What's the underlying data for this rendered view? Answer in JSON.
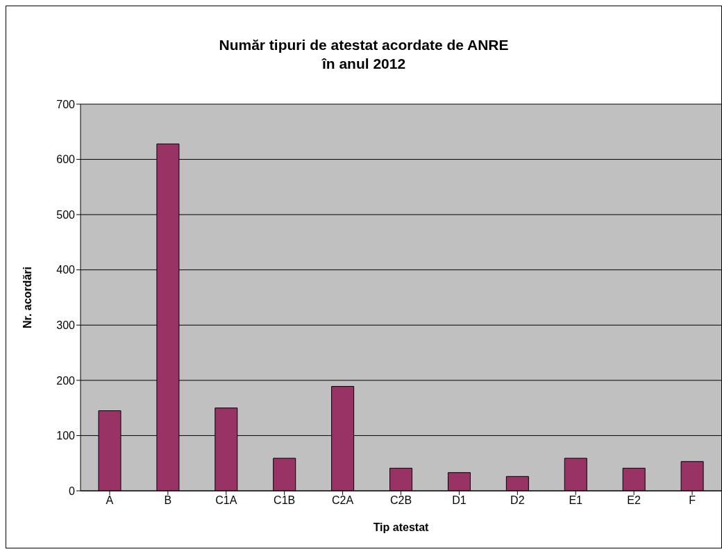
{
  "chart_data": {
    "type": "bar",
    "title": "Număr tipuri de atestat acordate de ANRE\nîn anul 2012",
    "xlabel": "Tip atestat",
    "ylabel": "Nr. acordări",
    "categories": [
      "A",
      "B",
      "C1A",
      "C1B",
      "C2A",
      "C2B",
      "D1",
      "D2",
      "E1",
      "E2",
      "F"
    ],
    "values": [
      145,
      628,
      150,
      59,
      189,
      41,
      33,
      26,
      59,
      41,
      53
    ],
    "color": "#993366",
    "ylim": [
      0,
      700
    ],
    "yticks": [
      0,
      100,
      200,
      300,
      400,
      500,
      600,
      700
    ],
    "grid": "y"
  }
}
